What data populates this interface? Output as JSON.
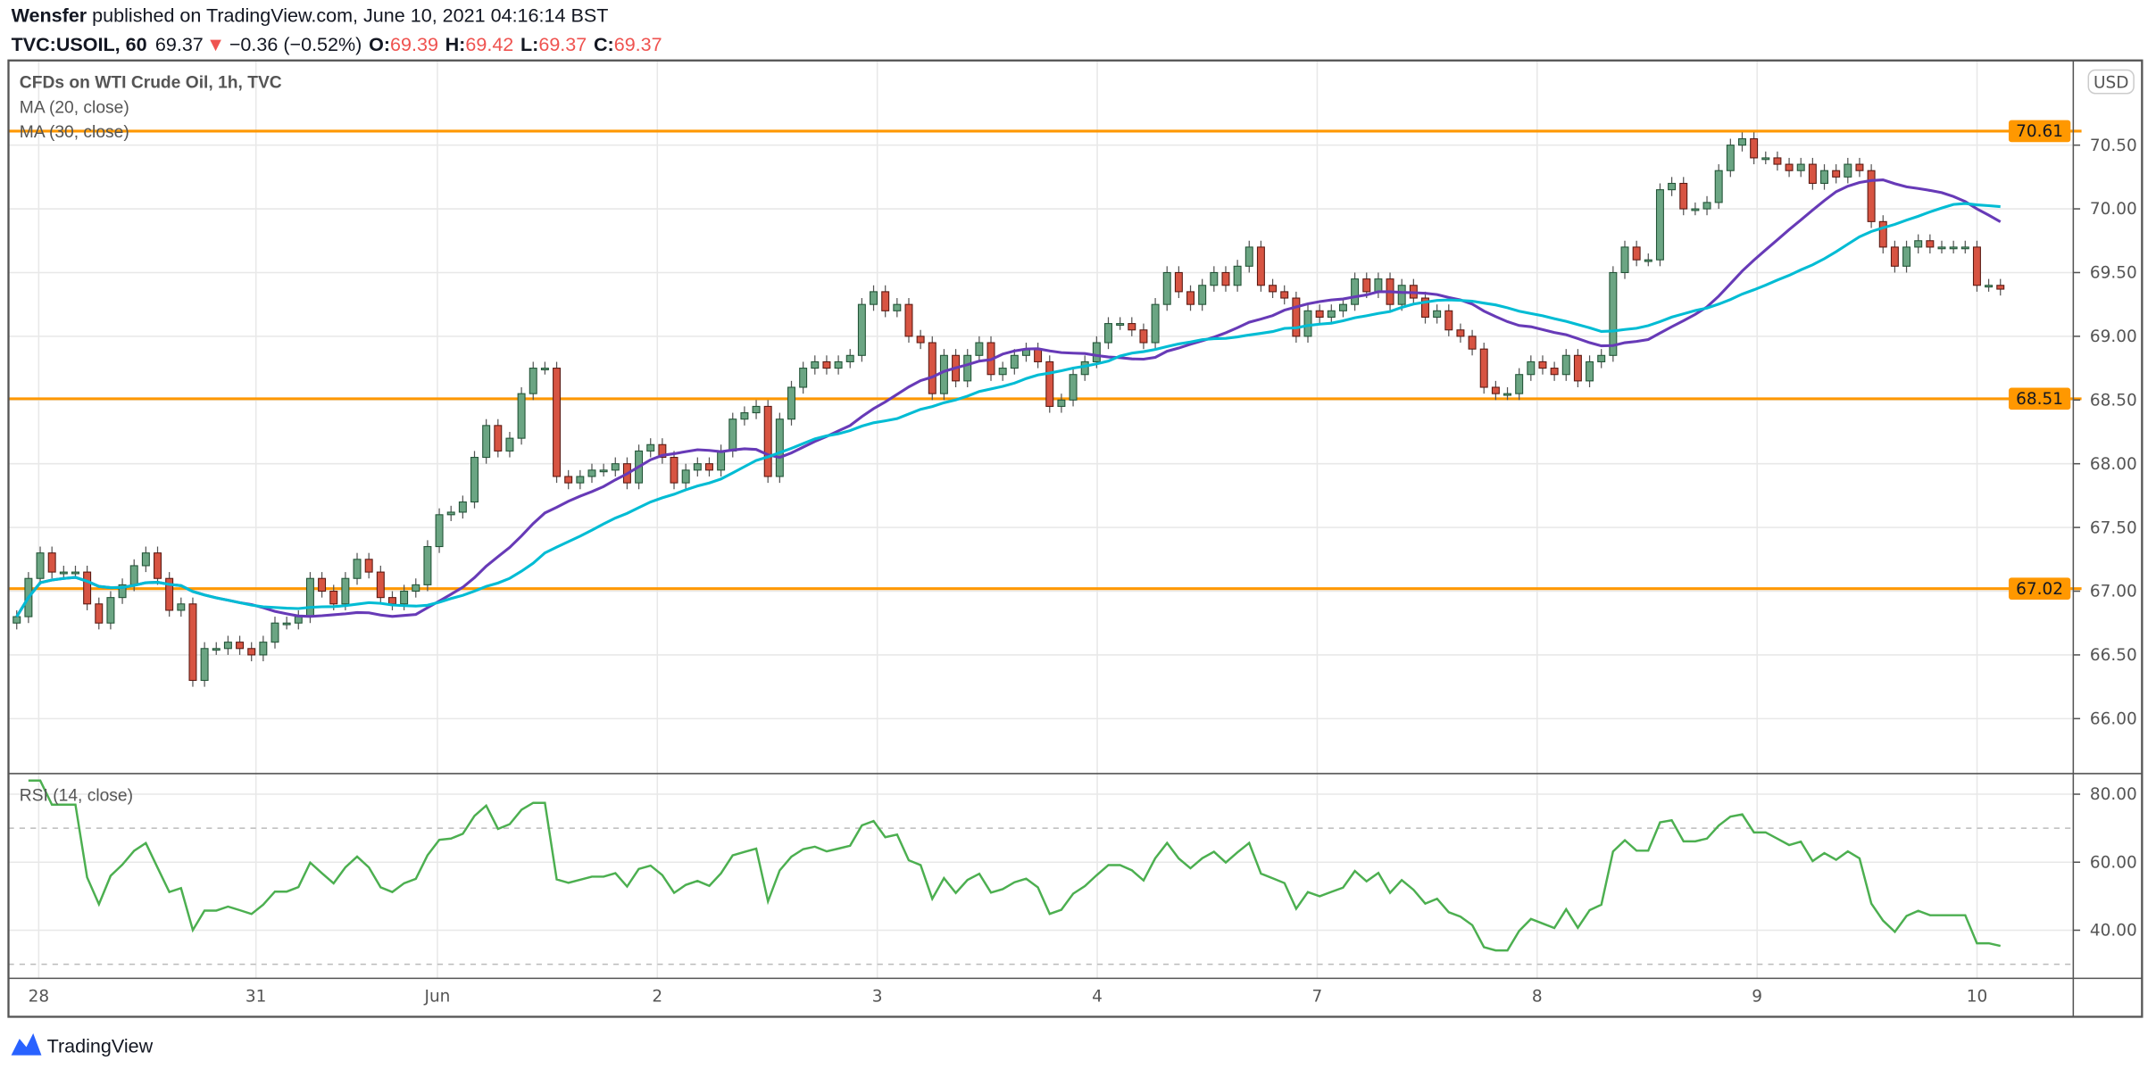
{
  "header": {
    "author": "Wensfer",
    "published": " published on TradingView.com, June 10, 2021 04:16:14 BST",
    "symbol": "TVC:USOIL, 60",
    "last": "69.37",
    "direction_icon": "triangle-down",
    "change": "−0.36 (−0.52%)",
    "o_label": "O:",
    "o": "69.39",
    "h_label": "H:",
    "h": "69.42",
    "l_label": "L:",
    "l": "69.37",
    "c_label": "C:",
    "c": "69.37"
  },
  "legend": {
    "title": "CFDs on WTI Crude Oil, 1h, TVC",
    "ma20": "MA (20, close)",
    "ma30": "MA (30, close)",
    "rsi": "RSI (14, close)"
  },
  "currency": "USD",
  "brand": "TradingView",
  "colors": {
    "up": "#6ba583",
    "up_border": "#225437",
    "down": "#d75442",
    "down_border": "#5b1a13",
    "ma20": "#673ab7",
    "ma30": "#00bcd4",
    "hline": "#ff9800",
    "rsi": "#4caf50"
  },
  "chart_data": {
    "type": "candlestick",
    "ylim": [
      65.6,
      70.95
    ],
    "price_ticks": [
      "70.50",
      "70.00",
      "69.50",
      "69.00",
      "68.50",
      "68.00",
      "67.50",
      "67.00",
      "66.50",
      "66.00"
    ],
    "price_tick_values": [
      70.5,
      70,
      69.5,
      69,
      68.5,
      68,
      67.5,
      67,
      66.5,
      66
    ],
    "hlines": [
      {
        "value": 70.61,
        "label": "70.61"
      },
      {
        "value": 68.51,
        "label": "68.51"
      },
      {
        "value": 67.02,
        "label": "67.02"
      }
    ],
    "x_ticks": [
      "28",
      "31",
      "Jun",
      "2",
      "3",
      "4",
      "7",
      "8",
      "9",
      "10"
    ],
    "close": [
      66.8,
      67.1,
      67.3,
      67.15,
      67.15,
      67.15,
      66.9,
      66.75,
      66.95,
      67.05,
      67.2,
      67.3,
      67.1,
      66.85,
      66.9,
      66.3,
      66.55,
      66.55,
      66.6,
      66.55,
      66.5,
      66.6,
      66.75,
      66.75,
      66.8,
      67.1,
      67.0,
      66.9,
      67.1,
      67.25,
      67.15,
      66.95,
      66.9,
      67.0,
      67.05,
      67.35,
      67.6,
      67.62,
      67.7,
      68.05,
      68.3,
      68.1,
      68.2,
      68.55,
      68.75,
      68.75,
      67.9,
      67.85,
      67.9,
      67.95,
      67.95,
      68.0,
      67.85,
      68.1,
      68.15,
      68.05,
      67.85,
      67.95,
      68.0,
      67.95,
      68.1,
      68.35,
      68.4,
      68.45,
      67.9,
      68.35,
      68.6,
      68.75,
      68.8,
      68.75,
      68.8,
      68.85,
      69.25,
      69.35,
      69.2,
      69.25,
      69.0,
      68.95,
      68.55,
      68.85,
      68.65,
      68.85,
      68.95,
      68.7,
      68.75,
      68.85,
      68.9,
      68.8,
      68.45,
      68.5,
      68.7,
      68.8,
      68.95,
      69.1,
      69.1,
      69.05,
      68.95,
      69.25,
      69.5,
      69.35,
      69.25,
      69.4,
      69.5,
      69.4,
      69.55,
      69.7,
      69.4,
      69.35,
      69.3,
      69.0,
      69.2,
      69.15,
      69.2,
      69.25,
      69.45,
      69.35,
      69.45,
      69.25,
      69.4,
      69.3,
      69.15,
      69.2,
      69.05,
      69.0,
      68.9,
      68.6,
      68.55,
      68.55,
      68.7,
      68.8,
      68.75,
      68.7,
      68.85,
      68.65,
      68.8,
      68.85,
      69.5,
      69.7,
      69.6,
      69.6,
      70.15,
      70.2,
      70.0,
      70.0,
      70.05,
      70.3,
      70.5,
      70.55,
      70.4,
      70.4,
      70.35,
      70.3,
      70.35,
      70.2,
      70.3,
      70.25,
      70.35,
      70.3,
      69.9,
      69.7,
      69.55,
      69.7,
      69.75,
      69.7,
      69.7,
      69.7,
      69.7,
      69.4,
      69.4,
      69.37
    ],
    "indicators": [
      {
        "name": "MA (20, close)",
        "period": 20
      },
      {
        "name": "MA (30, close)",
        "period": 30
      },
      {
        "name": "RSI (14, close)",
        "period": 14,
        "levels": [
          70,
          30
        ]
      }
    ],
    "rsi_ticks": [
      "80.00",
      "60.00",
      "40.00"
    ],
    "rsi_tick_values": [
      80,
      60,
      40
    ],
    "rsi_ylim": [
      25,
      84.8
    ],
    "grid": true
  }
}
